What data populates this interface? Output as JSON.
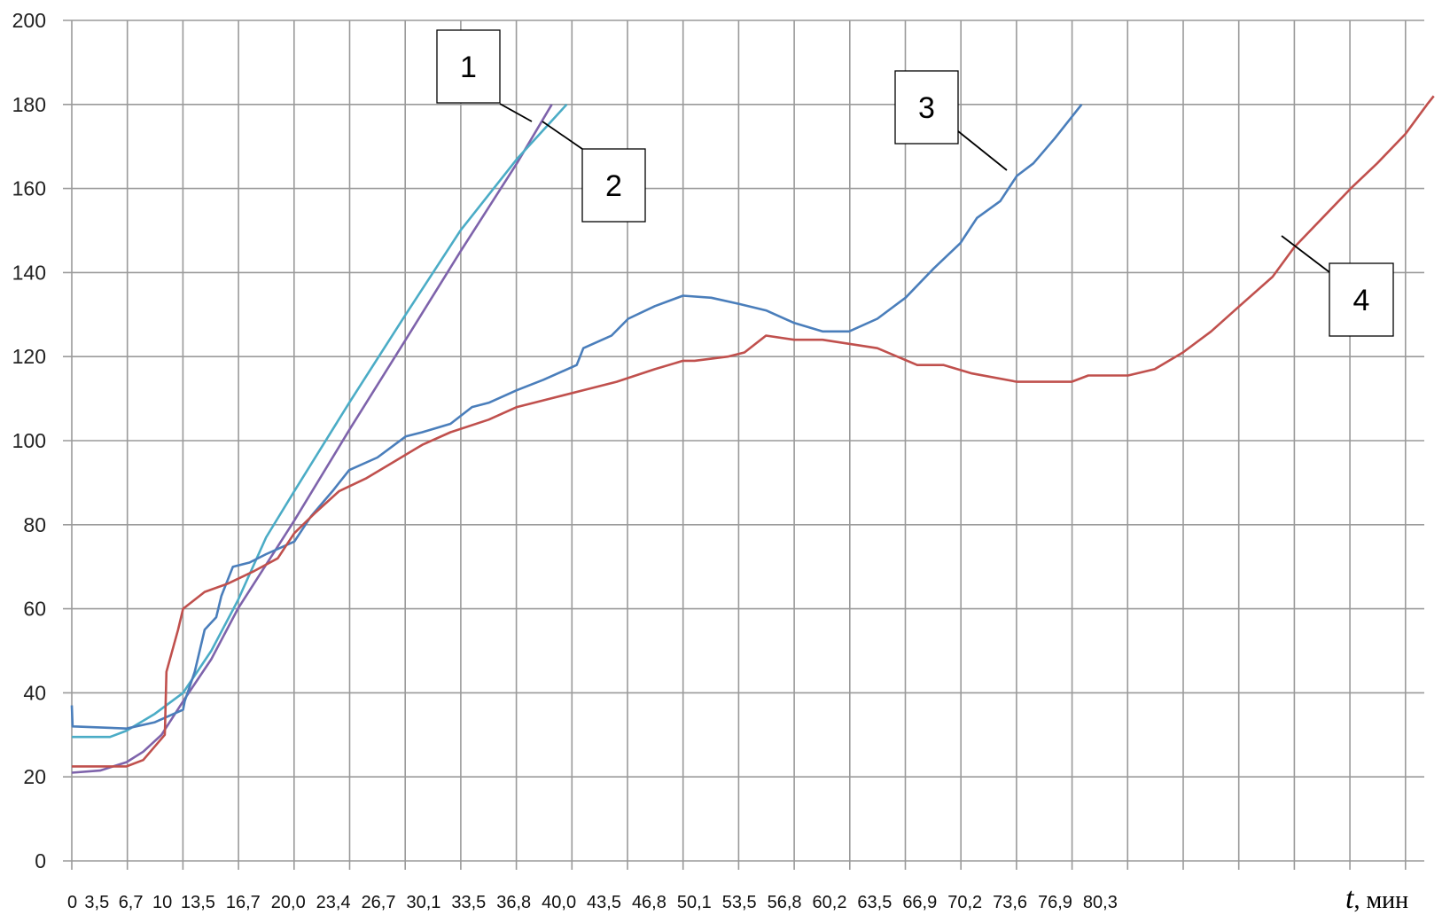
{
  "chart_data": {
    "type": "line",
    "title": "",
    "xlabel_var": "t",
    "xlabel_unit": ", мин",
    "ylabel": "",
    "xlim": [
      0,
      81.4
    ],
    "ylim": [
      0,
      200
    ],
    "grid": true,
    "legend": "none",
    "x_tick_labels": [
      "0",
      "3,5",
      "6,7",
      "10",
      "13,5",
      "16,7",
      "20,0",
      "23,4",
      "26,7",
      "30,1",
      "33,5",
      "36,8",
      "40,0",
      "43,5",
      "46,8",
      "50,1",
      "53,5",
      "56,8",
      "60,2",
      "63,5",
      "66,9",
      "70,2",
      "73,6",
      "76,9",
      "80,3"
    ],
    "y_ticks": [
      0,
      20,
      40,
      60,
      80,
      100,
      120,
      140,
      160,
      180,
      200
    ],
    "series": [
      {
        "label": "1",
        "color": "#7E63AB",
        "x": [
          0,
          1.7,
          3.3,
          4.3,
          5.4,
          6.7,
          8.4,
          10.0,
          13.4,
          16.7,
          20.1,
          23.4,
          26.8,
          28.9
        ],
        "y": [
          21,
          21.5,
          23.5,
          26,
          30,
          38,
          48,
          60,
          81,
          102.5,
          124,
          145,
          166,
          180
        ]
      },
      {
        "label": "2",
        "color": "#4BACC6",
        "x": [
          0,
          2.3,
          3.3,
          5.0,
          6.7,
          8.4,
          10.0,
          11.7,
          13.4,
          16.7,
          20.1,
          23.4,
          26.8,
          29.8
        ],
        "y": [
          29.5,
          29.5,
          31,
          35,
          40,
          50,
          62,
          77,
          88,
          109,
          130,
          150,
          167,
          180
        ]
      },
      {
        "label": "3",
        "color": "#4A7EBB",
        "x": [
          0,
          0.05,
          0.1,
          3.3,
          5.0,
          6.7,
          6.8,
          7.4,
          8.0,
          8.7,
          9.0,
          9.7,
          10.7,
          11.7,
          13.4,
          14.4,
          15.7,
          16.7,
          18.4,
          20.1,
          21.1,
          22.8,
          24.1,
          25.1,
          26.8,
          28.4,
          30.4,
          30.8,
          32.5,
          33.5,
          35.1,
          36.8,
          38.5,
          40.2,
          41.8,
          43.5,
          45.2,
          46.8,
          48.5,
          50.2,
          51.9,
          53.5,
          54.5,
          55.9,
          56.9,
          57.9,
          59.2,
          60.8
        ],
        "y": [
          37,
          32,
          32,
          31.5,
          33,
          36,
          38,
          45,
          55,
          58,
          63,
          70,
          71,
          73,
          76,
          82,
          88,
          93,
          96,
          101,
          102,
          104,
          108,
          109,
          112,
          114.5,
          118,
          122,
          125,
          129,
          132,
          134.5,
          134,
          132.5,
          131,
          128,
          126,
          126,
          129,
          134,
          141,
          147,
          153,
          157,
          163,
          166,
          172,
          180
        ]
      },
      {
        "label": "4",
        "color": "#C0504D",
        "x": [
          0,
          3.3,
          4.3,
          5.6,
          5.61,
          5.7,
          6.4,
          6.7,
          8.0,
          9.4,
          11.0,
          12.4,
          13.4,
          14.7,
          16.1,
          17.7,
          19.4,
          21.1,
          22.8,
          25.1,
          26.8,
          28.8,
          30.8,
          32.8,
          35.1,
          36.8,
          37.5,
          39.5,
          40.5,
          41.8,
          43.5,
          45.2,
          48.5,
          50.9,
          52.5,
          54.2,
          56.9,
          60.2,
          61.2,
          63.6,
          65.2,
          66.9,
          68.6,
          70.3,
          72.3,
          73.6,
          75.3,
          77.0,
          78.6,
          80.3,
          81.6,
          82.0
        ],
        "y": [
          22.5,
          22.5,
          24,
          30,
          31,
          45,
          55,
          60,
          64,
          66,
          69,
          72,
          78,
          83,
          88,
          91,
          95,
          99,
          102,
          105,
          108,
          110,
          112,
          114,
          117,
          119,
          119,
          120,
          121,
          125,
          124,
          124,
          122,
          118,
          118,
          116,
          114,
          114,
          115.5,
          115.5,
          117,
          121,
          126,
          132,
          139,
          146,
          153,
          160,
          166,
          173,
          180,
          182
        ]
      }
    ]
  }
}
